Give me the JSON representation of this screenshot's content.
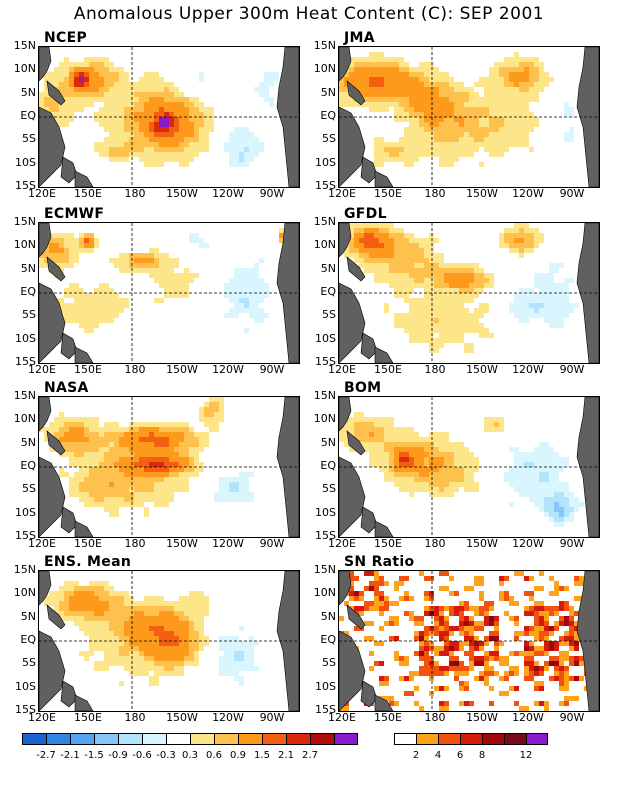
{
  "title": "Anomalous Upper 300m Heat Content (C): SEP 2001",
  "panels": [
    {
      "label": "NCEP"
    },
    {
      "label": "JMA"
    },
    {
      "label": "ECMWF"
    },
    {
      "label": "GFDL"
    },
    {
      "label": "NASA"
    },
    {
      "label": "BOM"
    },
    {
      "label": "ENS. Mean"
    },
    {
      "label": "SN Ratio"
    }
  ],
  "axes": {
    "y_ticks": [
      "15N",
      "10N",
      "5N",
      "EQ",
      "5S",
      "10S",
      "15S"
    ],
    "x_ticks": [
      "120E",
      "150E",
      "180",
      "150W",
      "120W",
      "90W"
    ]
  },
  "colorbar_anomaly": {
    "colors": [
      "#1c64d4",
      "#2e85e4",
      "#52a5f0",
      "#86c5f8",
      "#b4e4fb",
      "#d9f6ff",
      "#ffffff",
      "#fde58a",
      "#fec14e",
      "#fd9a1c",
      "#f45f12",
      "#d92a0c",
      "#ad0e0a",
      "#8a1ad0"
    ],
    "labels": [
      "-2.7",
      "-2.1",
      "-1.5",
      "-0.9",
      "-0.6",
      "-0.3",
      "0.3",
      "0.6",
      "0.9",
      "1.5",
      "2.1",
      "2.7"
    ]
  },
  "colorbar_sn": {
    "colors": [
      "#ffffff",
      "#fea21c",
      "#f2520e",
      "#d41a0a",
      "#a3060b",
      "#7a0a18",
      "#8a1ad0"
    ],
    "labels": [
      "2",
      "4",
      "6",
      "8",
      "12"
    ]
  },
  "chart_data": {
    "type": "heatmap",
    "title": "Anomalous Upper 300m Heat Content (C): SEP 2001",
    "x_range": [
      "120E",
      "70W"
    ],
    "y_range": [
      "15S",
      "15N"
    ],
    "panels": [
      "NCEP",
      "JMA",
      "ECMWF",
      "GFDL",
      "NASA",
      "BOM",
      "ENS. Mean",
      "SN Ratio"
    ],
    "anomaly_levels": [
      -2.7,
      -2.1,
      -1.5,
      -0.9,
      -0.6,
      -0.3,
      0.3,
      0.6,
      0.9,
      1.5,
      2.1,
      2.7
    ],
    "sn_levels": [
      2,
      4,
      6,
      8,
      12
    ]
  }
}
